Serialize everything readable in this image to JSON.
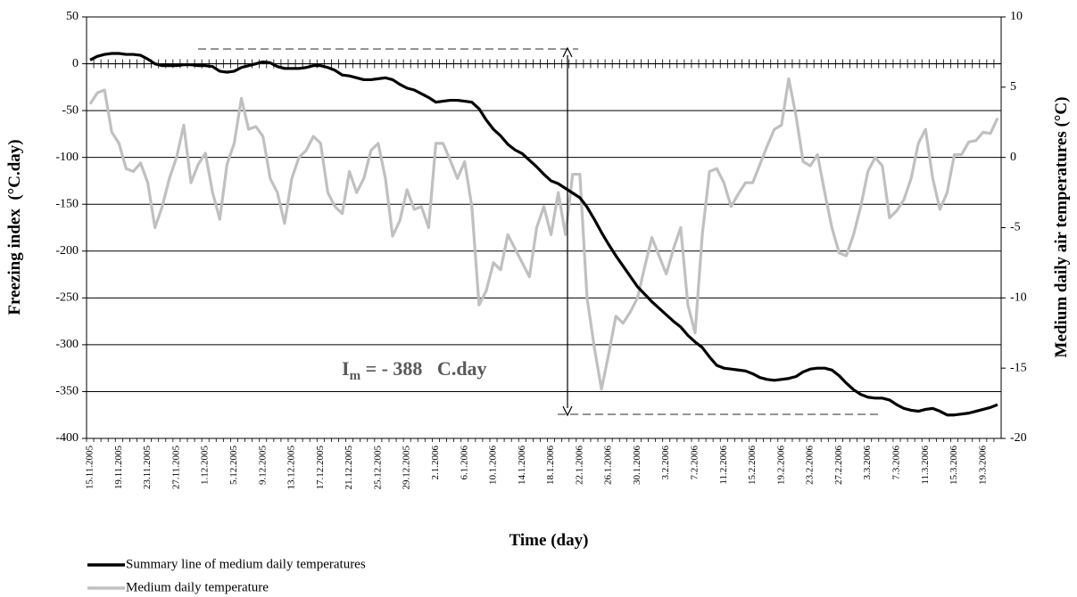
{
  "chart_data": {
    "type": "line",
    "x_label": "Time (day)",
    "y_label": "Freezing index  (°C.day)",
    "y2_label": "Medium daily air temperatures (°C)",
    "annotation": {
      "main": "I",
      "subscript": "m",
      "rest": " = - 388   C.day"
    },
    "grid": true,
    "legend": "bottom-left",
    "ylim": [
      -400,
      50
    ],
    "yticks": [
      -400,
      -350,
      -300,
      -250,
      -200,
      -150,
      -100,
      -50,
      0,
      50
    ],
    "y2lim": [
      -20,
      10
    ],
    "y2ticks": [
      -20,
      -15,
      -10,
      -5,
      0,
      5,
      10
    ],
    "categories": [
      "15.11.2005",
      null,
      null,
      null,
      "19.11.2005",
      null,
      null,
      null,
      "23.11.2005",
      null,
      null,
      null,
      "27.11.2005",
      null,
      null,
      null,
      "1.12.2005",
      null,
      null,
      null,
      "5.12.2005",
      null,
      null,
      null,
      "9.12.2005",
      null,
      null,
      null,
      "13.12.2005",
      null,
      null,
      null,
      "17.12.2005",
      null,
      null,
      null,
      "21.12.2005",
      null,
      null,
      null,
      "25.12.2005",
      null,
      null,
      null,
      "29.12.2005",
      null,
      null,
      null,
      "2.1.2006",
      null,
      null,
      null,
      "6.1.2006",
      null,
      null,
      null,
      "10.1.2006",
      null,
      null,
      null,
      "14.1.2006",
      null,
      null,
      null,
      "18.1.2006",
      null,
      null,
      null,
      "22.1.2006",
      null,
      null,
      null,
      "26.1.2006",
      null,
      null,
      null,
      "30.1.2006",
      null,
      null,
      null,
      "3.2.2006",
      null,
      null,
      null,
      "7.2.2006",
      null,
      null,
      null,
      "11.2.2006",
      null,
      null,
      null,
      "15.2.2006",
      null,
      null,
      null,
      "19.2.2006",
      null,
      null,
      null,
      "23.2.2006",
      null,
      null,
      null,
      "27.2.2006",
      null,
      null,
      null,
      "3.3.2006",
      null,
      null,
      null,
      "7.3.2006",
      null,
      null,
      null,
      "11.3.2006",
      null,
      null,
      null,
      "15.3.2006",
      null,
      null,
      null,
      "19.3.2006",
      null,
      null
    ],
    "series": [
      {
        "name": "Summary line of medium daily temperatures",
        "color": "#000000",
        "axis": "y",
        "values": [
          4,
          8,
          10,
          11,
          11,
          10,
          10,
          9,
          5,
          0,
          -2,
          -2,
          -2,
          -1,
          -1,
          -2,
          -2,
          -3,
          -8,
          -9,
          -8,
          -4,
          -2,
          0,
          2,
          1,
          -3,
          -5,
          -5,
          -5,
          -4,
          -2,
          -2,
          -4,
          -7,
          -12,
          -13,
          -15,
          -17,
          -17,
          -16,
          -15,
          -17,
          -22,
          -26,
          -28,
          -32,
          -36,
          -41,
          -40,
          -39,
          -39,
          -40,
          -41,
          -48,
          -60,
          -70,
          -77,
          -86,
          -92,
          -96,
          -103,
          -110,
          -118,
          -125,
          -128,
          -133,
          -138,
          -143,
          -153,
          -166,
          -180,
          -193,
          -205,
          -216,
          -227,
          -238,
          -246,
          -254,
          -261,
          -268,
          -275,
          -281,
          -290,
          -297,
          -303,
          -313,
          -322,
          -325,
          -326,
          -327,
          -328,
          -331,
          -335,
          -337,
          -338,
          -337,
          -336,
          -334,
          -329,
          -326,
          -325,
          -325,
          -327,
          -333,
          -341,
          -348,
          -353,
          -356,
          -357,
          -357,
          -359,
          -364,
          -368,
          -370,
          -371,
          -369,
          -368,
          -371,
          -375,
          -375,
          -374,
          -373,
          -371,
          -369,
          -367,
          -364
        ]
      },
      {
        "name": "Medium daily temperature",
        "color": "#c0c0c0",
        "axis": "y2",
        "values": [
          3.8,
          4.6,
          4.8,
          1.8,
          1.0,
          -0.8,
          -1.0,
          -0.4,
          -1.8,
          -5.0,
          -3.5,
          -1.5,
          0.0,
          2.3,
          -1.8,
          -0.5,
          0.3,
          -2.5,
          -4.4,
          -0.5,
          1.0,
          4.2,
          2.0,
          2.2,
          1.5,
          -1.5,
          -2.5,
          -4.7,
          -1.5,
          0.0,
          0.5,
          1.5,
          1.0,
          -2.5,
          -3.5,
          -4.0,
          -1.0,
          -2.5,
          -1.5,
          0.5,
          1.0,
          -1.5,
          -5.6,
          -4.5,
          -2.3,
          -3.7,
          -3.5,
          -5.0,
          1.0,
          1.0,
          -0.2,
          -1.5,
          -0.3,
          -3.5,
          -10.5,
          -9.5,
          -7.5,
          -8.0,
          -5.5,
          -6.5,
          -7.5,
          -8.5,
          -5.0,
          -3.5,
          -5.5,
          -2.5,
          -5.5,
          -1.2,
          -1.2,
          -10.0,
          -13.5,
          -16.5,
          -14.0,
          -11.3,
          -11.8,
          -11.0,
          -10.0,
          -7.8,
          -5.7,
          -7.0,
          -8.3,
          -6.5,
          -5.0,
          -10.5,
          -12.5,
          -5.5,
          -1.0,
          -0.8,
          -1.8,
          -3.5,
          -2.6,
          -1.8,
          -1.8,
          -0.5,
          0.8,
          2.0,
          2.3,
          5.6,
          3.0,
          -0.3,
          -0.6,
          0.2,
          -2.5,
          -5.0,
          -6.8,
          -7.0,
          -5.5,
          -3.5,
          -1.0,
          0.0,
          -0.6,
          -4.3,
          -3.8,
          -3.0,
          -1.5,
          1.0,
          2.0,
          -1.5,
          -3.7,
          -2.5,
          0.2,
          0.2,
          1.1,
          1.2,
          1.8,
          1.7,
          2.8
        ]
      }
    ]
  }
}
